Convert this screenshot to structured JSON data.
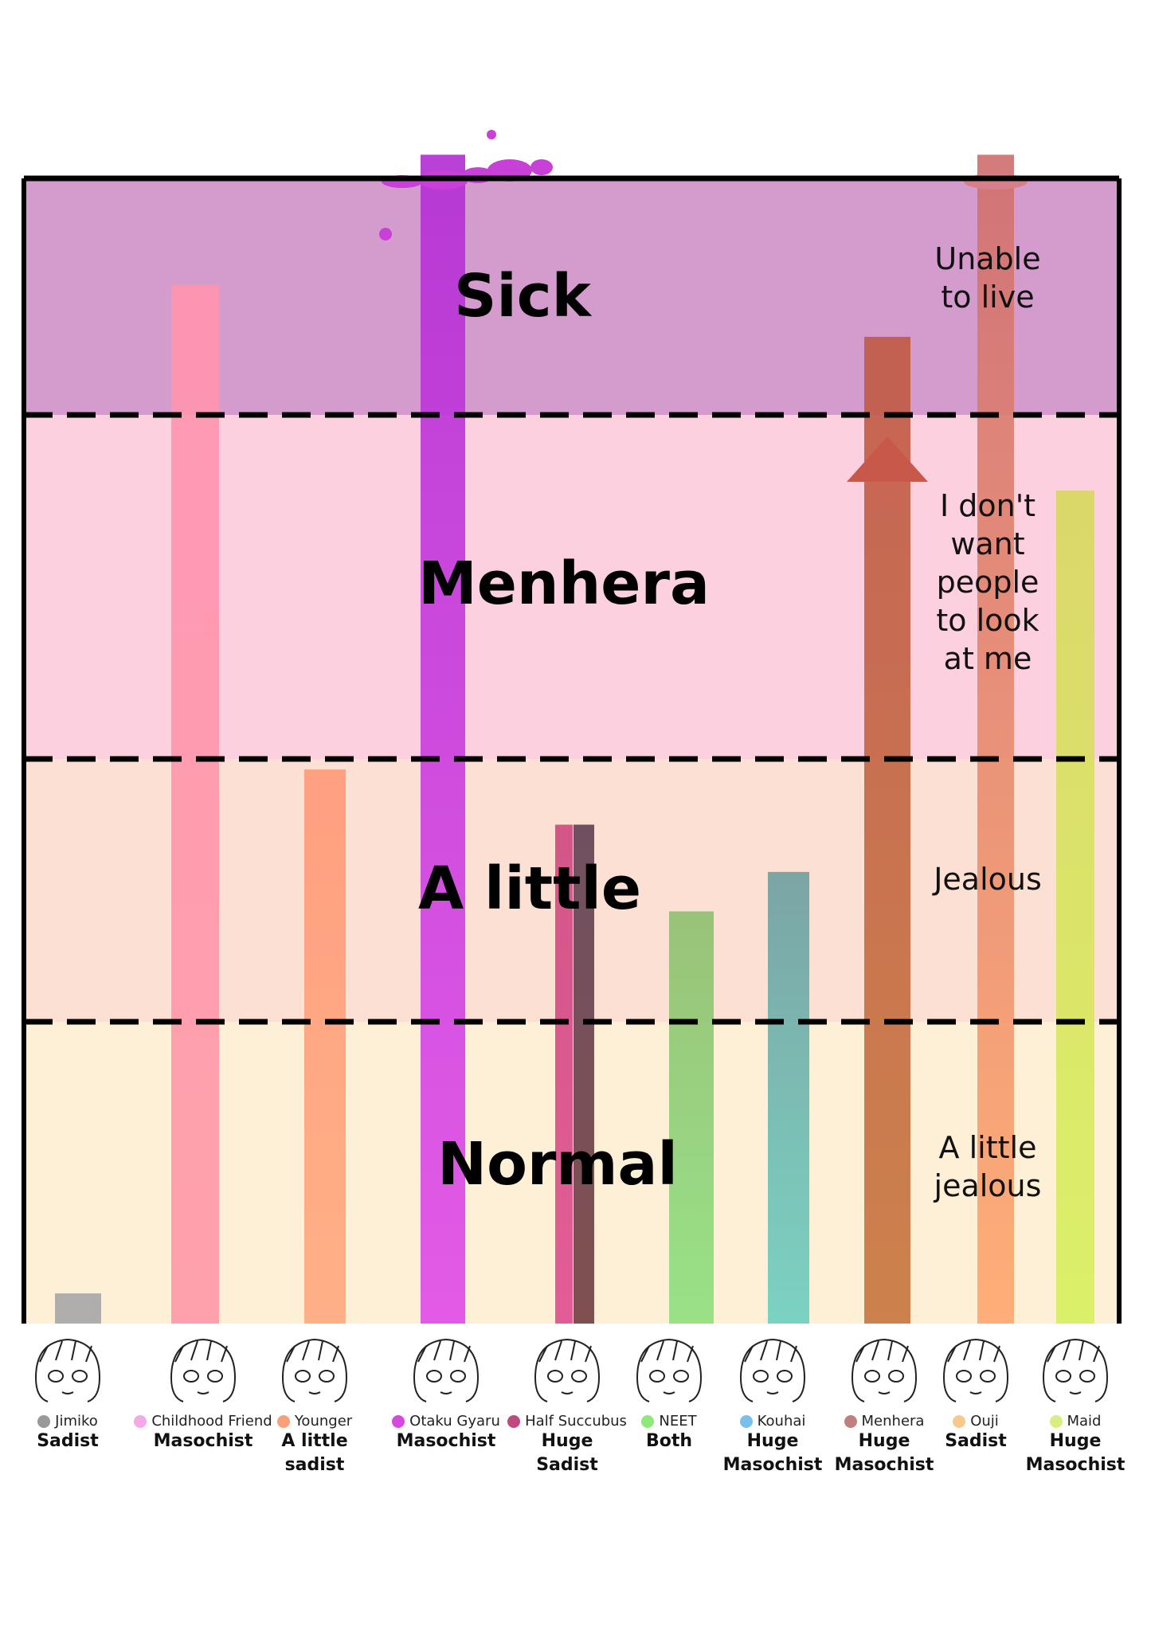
{
  "chart_data": {
    "type": "bar",
    "levels": [
      {
        "label": "Normal",
        "side": "A little jealous",
        "bg": "#fdf0d6"
      },
      {
        "label": "A little",
        "side": "Jealous",
        "bg": "#fde0d4"
      },
      {
        "label": "Menhera",
        "side": "I don't want people to look at me",
        "bg": "#fdd0e0"
      },
      {
        "label": "Sick",
        "side": "Unable to live",
        "bg": "#d39ccd"
      }
    ],
    "ylim": [
      0,
      4.1
    ],
    "categories": [
      "Jimiko",
      "Childhood Friend",
      "Younger",
      "Otaku Gyaru",
      "Half Succubus",
      "NEET",
      "Kouhai",
      "Menhera",
      "Ouji",
      "Maid"
    ],
    "roles": [
      "Sadist",
      "Masochist",
      "A little sadist",
      "Masochist",
      "Huge Sadist",
      "Both",
      "Huge Masochist",
      "Huge Masochist",
      "Sadist",
      "Huge Masochist"
    ],
    "values": [
      0.1,
      3.55,
      1.96,
      4.1,
      1.75,
      1.42,
      1.57,
      3.33,
      4.1,
      2.78
    ],
    "dot_colors": [
      "#999999",
      "#f5a8e8",
      "#f7a07a",
      "#d648e0",
      "#c04a80",
      "#8ee87a",
      "#7ac0ee",
      "#c08080",
      "#f7c890",
      "#d8ee80"
    ],
    "bar_colors": [
      [
        "#a8a8a8",
        "#a8a8a8"
      ],
      [
        "#ff94b0",
        "#ff9aa8"
      ],
      [
        "#ff9a78",
        "#ffaa80"
      ],
      [
        "#b430d4",
        "#e04ee8"
      ],
      [
        "#d04a80",
        "#e05090"
      ],
      [
        "#90c070",
        "#90e080"
      ],
      [
        "#70a0a0",
        "#70d0c0"
      ],
      [
        "#c05a48",
        "#c87840"
      ],
      [
        "#d07070",
        "#ffa870"
      ],
      [
        "#d8d860",
        "#d8f060"
      ]
    ],
    "extra_bar_color": [
      "#705060",
      "#805050"
    ],
    "arrow_color": "#c8584a",
    "grid_style": "dashed"
  }
}
